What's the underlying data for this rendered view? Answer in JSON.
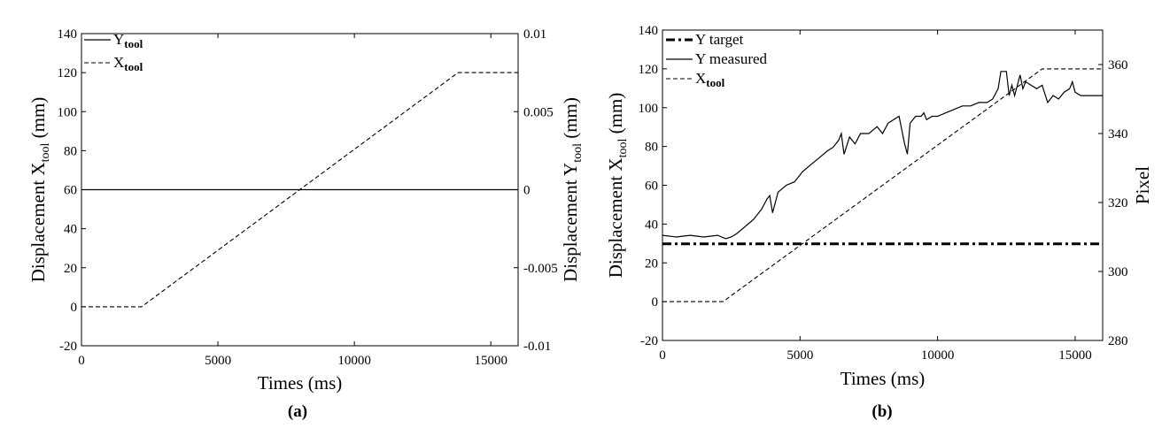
{
  "chart_data": [
    {
      "type": "line",
      "caption": "(a)",
      "xlabel": "Times (ms)",
      "ylabel": {
        "main": "Displacement X",
        "sub": "tool",
        "unit": " (mm)"
      },
      "y2label": {
        "main": "Displacement Y",
        "sub": "tool",
        "unit": " (mm)"
      },
      "xlim": [
        0,
        16000
      ],
      "ylim": [
        -20,
        140
      ],
      "y2lim": [
        -0.01,
        0.01
      ],
      "xticks": [
        0,
        5000,
        10000,
        15000
      ],
      "xtick_labels": [
        "0",
        "5000",
        "10000",
        "15000"
      ],
      "yticks": [
        -20,
        0,
        20,
        40,
        60,
        80,
        100,
        120,
        140
      ],
      "ytick_labels": [
        "-20",
        "0",
        "20",
        "40",
        "60",
        "80",
        "100",
        "120",
        "140"
      ],
      "y2ticks": [
        -0.01,
        -0.005,
        0,
        0.005,
        0.01
      ],
      "y2tick_labels": [
        "-0.01",
        "-0.005",
        "0",
        "0.005",
        "0.01"
      ],
      "legend_position": "top-left",
      "series": [
        {
          "name": "Y",
          "name_sub": "tool",
          "style": "solid",
          "axis": "y2",
          "x": [
            0,
            16000
          ],
          "y": [
            0,
            0
          ]
        },
        {
          "name": "X",
          "name_sub": "tool",
          "style": "dashed",
          "axis": "y",
          "x": [
            0,
            2200,
            13800,
            16000
          ],
          "y": [
            0,
            0,
            120,
            120
          ]
        }
      ]
    },
    {
      "type": "line",
      "caption": "(b)",
      "xlabel": "Times (ms)",
      "ylabel": {
        "main": "Displacement X",
        "sub": "tool",
        "unit": " (mm)"
      },
      "y2label": {
        "main": "Pixel",
        "sub": "",
        "unit": ""
      },
      "xlim": [
        0,
        16000
      ],
      "ylim": [
        -20,
        140
      ],
      "y2lim": [
        280,
        370
      ],
      "xticks": [
        0,
        5000,
        10000,
        15000
      ],
      "xtick_labels": [
        "0",
        "5000",
        "10000",
        "15000"
      ],
      "yticks": [
        -20,
        0,
        20,
        40,
        60,
        80,
        100,
        120,
        140
      ],
      "ytick_labels": [
        "-20",
        "0",
        "20",
        "40",
        "60",
        "80",
        "100",
        "120",
        "140"
      ],
      "y2ticks": [
        280,
        300,
        320,
        340,
        360
      ],
      "y2tick_labels": [
        "280",
        "300",
        "320",
        "340",
        "360"
      ],
      "legend_position": "top-left",
      "series": [
        {
          "name": "Y target",
          "name_sub": "",
          "style": "dashdot",
          "axis": "y2",
          "x": [
            0,
            16000
          ],
          "y": [
            308,
            308
          ]
        },
        {
          "name": "Y measured",
          "name_sub": "",
          "style": "solid",
          "axis": "y2",
          "x": [
            0,
            500,
            1000,
            1500,
            2000,
            2300,
            2500,
            2700,
            3000,
            3300,
            3600,
            3800,
            3900,
            4000,
            4200,
            4500,
            4800,
            5100,
            5400,
            5700,
            6000,
            6200,
            6400,
            6500,
            6600,
            6800,
            7000,
            7200,
            7500,
            7800,
            8000,
            8200,
            8400,
            8600,
            8800,
            8900,
            9000,
            9200,
            9400,
            9500,
            9600,
            9800,
            10000,
            10300,
            10600,
            10900,
            11200,
            11500,
            11800,
            12000,
            12200,
            12300,
            12400,
            12500,
            12600,
            12700,
            12800,
            12900,
            13000,
            13100,
            13200,
            13400,
            13600,
            13800,
            14000,
            14200,
            14400,
            14600,
            14800,
            14900,
            15000,
            15200,
            15500,
            16000
          ],
          "y": [
            310.5,
            310,
            310.5,
            310,
            310.5,
            309.5,
            310,
            311,
            313,
            315,
            318,
            321,
            322,
            317,
            323,
            325,
            326,
            329,
            331,
            333,
            335,
            336,
            338,
            340,
            334,
            339,
            337,
            340,
            340,
            342,
            340,
            343,
            344,
            345,
            337,
            334,
            343,
            345,
            345,
            346,
            344,
            345,
            345,
            346,
            347,
            348,
            348,
            349,
            349,
            350,
            353,
            358,
            358,
            358,
            351,
            354,
            351,
            354,
            357,
            353,
            355,
            354,
            353,
            354,
            349,
            351,
            350,
            352,
            353,
            355,
            352,
            351,
            351,
            351
          ]
        },
        {
          "name": "X",
          "name_sub": "tool",
          "style": "dashed",
          "axis": "y",
          "x": [
            0,
            2200,
            13800,
            16000
          ],
          "y": [
            0,
            0,
            120,
            120
          ]
        }
      ]
    }
  ]
}
